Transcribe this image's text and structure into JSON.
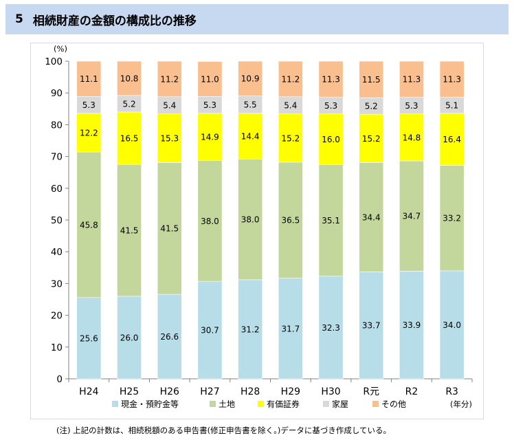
{
  "header": {
    "number": "5",
    "title": "相続財産の金額の構成比の推移"
  },
  "chart_data": {
    "type": "bar",
    "stacked": true,
    "ylabel": "(%)",
    "xlabel": "(年分)",
    "ylim": [
      0,
      100
    ],
    "yticks": [
      "0",
      "10",
      "20",
      "30",
      "40",
      "50",
      "60",
      "70",
      "80",
      "90",
      "100"
    ],
    "categories": [
      "H24",
      "H25",
      "H26",
      "H27",
      "H28",
      "H29",
      "H30",
      "R元",
      "R2",
      "R3"
    ],
    "series": [
      {
        "name": "現金・預貯金等",
        "color": "#b7dde8",
        "values": [
          25.6,
          26.0,
          26.6,
          30.7,
          31.2,
          31.7,
          32.3,
          33.7,
          33.9,
          34.0
        ]
      },
      {
        "name": "土地",
        "color": "#c3d69b",
        "values": [
          45.8,
          41.5,
          41.5,
          38.0,
          38.0,
          36.5,
          35.1,
          34.4,
          34.7,
          33.2
        ]
      },
      {
        "name": "有価証券",
        "color": "#ffff00",
        "values": [
          12.2,
          16.5,
          15.3,
          14.9,
          14.4,
          15.2,
          16.0,
          15.2,
          14.8,
          16.4
        ]
      },
      {
        "name": "家屋",
        "color": "#d9d9d9",
        "values": [
          5.3,
          5.2,
          5.4,
          5.3,
          5.5,
          5.4,
          5.3,
          5.2,
          5.3,
          5.1
        ]
      },
      {
        "name": "その他",
        "color": "#fabf8f",
        "values": [
          11.1,
          10.8,
          11.2,
          11.0,
          10.9,
          11.2,
          11.3,
          11.5,
          11.3,
          11.3
        ]
      }
    ],
    "grid": false,
    "legend": "bottom"
  },
  "note": "(注) 上記の計数は、相続税額のある申告書(修正申告書を除く。)データに基づき作成している。"
}
